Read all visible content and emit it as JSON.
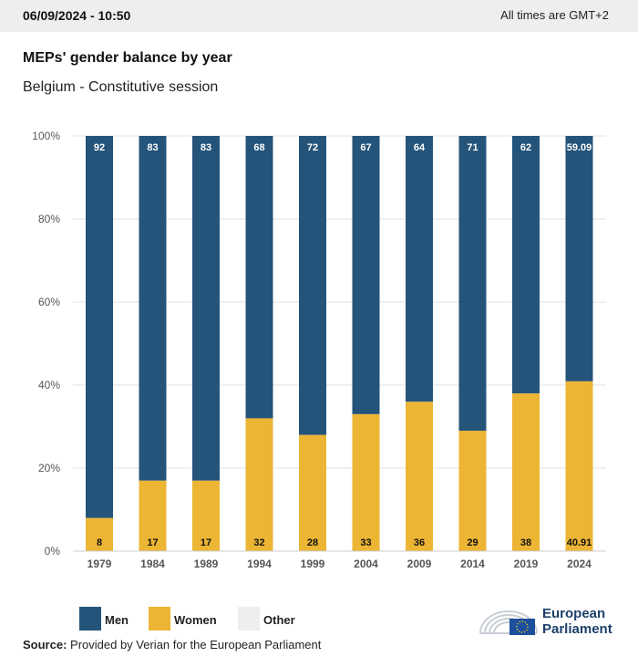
{
  "header": {
    "date": "06/09/2024 - 10:50",
    "timezone": "All times are GMT+2"
  },
  "title": "MEPs' gender balance by year",
  "subtitle": "Belgium - Constitutive session",
  "colors": {
    "men": "#24547a",
    "women": "#ecb534",
    "other": "#eeeef0",
    "grid": "#e2e2e2"
  },
  "chart_data": {
    "type": "bar",
    "stacked": true,
    "categories": [
      "1979",
      "1984",
      "1989",
      "1994",
      "1999",
      "2004",
      "2009",
      "2014",
      "2019",
      "2024"
    ],
    "series": [
      {
        "name": "Women",
        "values": [
          8,
          17,
          17,
          32,
          28,
          33,
          36,
          29,
          38,
          40.91
        ],
        "labels": [
          "8",
          "17",
          "17",
          "32",
          "28",
          "33",
          "36",
          "29",
          "38",
          "40.91"
        ]
      },
      {
        "name": "Men",
        "values": [
          92,
          83,
          83,
          68,
          72,
          67,
          64,
          71,
          62,
          59.09
        ],
        "labels": [
          "92",
          "83",
          "83",
          "68",
          "72",
          "67",
          "64",
          "71",
          "62",
          "59.09"
        ]
      },
      {
        "name": "Other",
        "values": [
          0,
          0,
          0,
          0,
          0,
          0,
          0,
          0,
          0,
          0
        ]
      }
    ],
    "ylim": [
      0,
      100
    ],
    "yticks": [
      "0%",
      "20%",
      "40%",
      "60%",
      "80%",
      "100%"
    ],
    "grid": true,
    "legend": [
      "Men",
      "Women",
      "Other"
    ],
    "legend_position": "bottom-left"
  },
  "source": {
    "label": "Source:",
    "text": "Provided by Verian for the European Parliament"
  },
  "logo": {
    "line1": "European",
    "line2": "Parliament"
  }
}
